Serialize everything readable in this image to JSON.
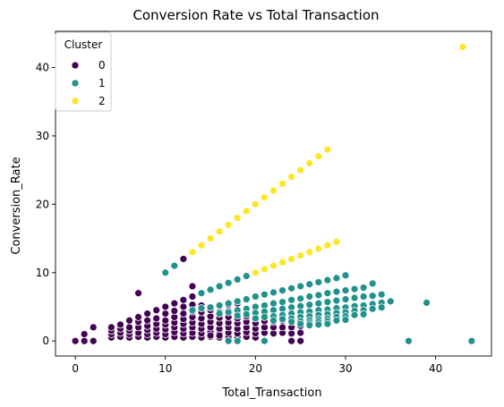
{
  "chart_data": {
    "type": "scatter",
    "title": "Conversion Rate vs Total Transaction",
    "xlabel": "Total_Transaction",
    "ylabel": "Conversion_Rate",
    "xlim": [
      -2.2,
      46.2
    ],
    "ylim": [
      -2.2,
      45.3
    ],
    "xticks": [
      0,
      10,
      20,
      30,
      40
    ],
    "yticks": [
      0,
      10,
      20,
      30,
      40
    ],
    "grid": false,
    "legend": {
      "title": "Cluster",
      "placement": "top-left"
    },
    "series": [
      {
        "name": "0",
        "color": "#440154",
        "points": [
          [
            0,
            0
          ],
          [
            1,
            0
          ],
          [
            2,
            0
          ],
          [
            1,
            1
          ],
          [
            2,
            2
          ],
          [
            7,
            7
          ],
          [
            12,
            12
          ],
          [
            13,
            8
          ],
          [
            4,
            0.5
          ],
          [
            4,
            1
          ],
          [
            4,
            1.5
          ],
          [
            4,
            2
          ],
          [
            5,
            0.6
          ],
          [
            5,
            1.2
          ],
          [
            5,
            1.8
          ],
          [
            5,
            2.4
          ],
          [
            6,
            0.5
          ],
          [
            6,
            1
          ],
          [
            6,
            1.5
          ],
          [
            6,
            2
          ],
          [
            6,
            3
          ],
          [
            7,
            0.6
          ],
          [
            7,
            1.2
          ],
          [
            7,
            2
          ],
          [
            7,
            2.8
          ],
          [
            7,
            3.5
          ],
          [
            8,
            0.5
          ],
          [
            8,
            1
          ],
          [
            8,
            1.6
          ],
          [
            8,
            2.2
          ],
          [
            8,
            3
          ],
          [
            8,
            4
          ],
          [
            9,
            0.6
          ],
          [
            9,
            1.2
          ],
          [
            9,
            1.8
          ],
          [
            9,
            2.5
          ],
          [
            9,
            3.3
          ],
          [
            9,
            4.5
          ],
          [
            10,
            0.5
          ],
          [
            10,
            1
          ],
          [
            10,
            1.7
          ],
          [
            10,
            2.4
          ],
          [
            10,
            3
          ],
          [
            10,
            4
          ],
          [
            10,
            5
          ],
          [
            11,
            0.6
          ],
          [
            11,
            1.3
          ],
          [
            11,
            2
          ],
          [
            11,
            2.7
          ],
          [
            11,
            3.5
          ],
          [
            11,
            4.4
          ],
          [
            11,
            5.5
          ],
          [
            12,
            0.5
          ],
          [
            12,
            1.1
          ],
          [
            12,
            1.8
          ],
          [
            12,
            2.5
          ],
          [
            12,
            3.2
          ],
          [
            12,
            4
          ],
          [
            12,
            5
          ],
          [
            12,
            6
          ],
          [
            13,
            0.6
          ],
          [
            13,
            1.2
          ],
          [
            13,
            2
          ],
          [
            13,
            2.7
          ],
          [
            13,
            3.5
          ],
          [
            13,
            4.3
          ],
          [
            13,
            5.3
          ],
          [
            13,
            6.5
          ],
          [
            14,
            0.5
          ],
          [
            14,
            1.1
          ],
          [
            14,
            1.8
          ],
          [
            14,
            2.5
          ],
          [
            14,
            3.3
          ],
          [
            14,
            4.2
          ],
          [
            14,
            5.2
          ],
          [
            15,
            0.6
          ],
          [
            15,
            1.3
          ],
          [
            15,
            2
          ],
          [
            15,
            2.8
          ],
          [
            15,
            3.6
          ],
          [
            15,
            4.5
          ],
          [
            15,
            5
          ],
          [
            16,
            0.5
          ],
          [
            16,
            1.1
          ],
          [
            16,
            1.8
          ],
          [
            16,
            2.6
          ],
          [
            16,
            3.4
          ],
          [
            16,
            4.2
          ],
          [
            16,
            5.2
          ],
          [
            17,
            0.6
          ],
          [
            17,
            1.2
          ],
          [
            17,
            2
          ],
          [
            17,
            2.7
          ],
          [
            17,
            3.5
          ],
          [
            17,
            4.4
          ],
          [
            17,
            5.3
          ],
          [
            18,
            0.5
          ],
          [
            18,
            1.1
          ],
          [
            18,
            1.8
          ],
          [
            18,
            2.6
          ],
          [
            18,
            3.3
          ],
          [
            18,
            4.2
          ],
          [
            18,
            5.5
          ],
          [
            19,
            0.6
          ],
          [
            19,
            1.3
          ],
          [
            19,
            2
          ],
          [
            19,
            2.8
          ],
          [
            19,
            3.6
          ],
          [
            19,
            4.6
          ],
          [
            20,
            0.5
          ],
          [
            20,
            1.1
          ],
          [
            20,
            1.8
          ],
          [
            20,
            2.6
          ],
          [
            20,
            3.4
          ],
          [
            20,
            4.3
          ],
          [
            20,
            5
          ],
          [
            21,
            1.2
          ],
          [
            21,
            2
          ],
          [
            21,
            2.9
          ],
          [
            21,
            3.8
          ],
          [
            22,
            1.1
          ],
          [
            22,
            2
          ],
          [
            22,
            2.8
          ],
          [
            22,
            3.7
          ],
          [
            23,
            1.2
          ],
          [
            23,
            2
          ],
          [
            23,
            3
          ],
          [
            24,
            1.1
          ],
          [
            24,
            2
          ],
          [
            24,
            3
          ],
          [
            25,
            1.2
          ],
          [
            25,
            2.2
          ],
          [
            25,
            3
          ],
          [
            26,
            2.3
          ],
          [
            26,
            3.5
          ],
          [
            27,
            2.5
          ],
          [
            27,
            3.7
          ],
          [
            28,
            3.6
          ],
          [
            15,
            0.8
          ],
          [
            16,
            0.8
          ],
          [
            24,
            0
          ],
          [
            25,
            0
          ]
        ]
      },
      {
        "name": "1",
        "color": "#21918c",
        "points": [
          [
            10,
            10
          ],
          [
            11,
            11
          ],
          [
            13,
            4.5
          ],
          [
            14,
            4.8
          ],
          [
            15,
            4.9
          ],
          [
            16,
            5.2
          ],
          [
            17,
            5.5
          ],
          [
            18,
            5.8
          ],
          [
            19,
            6.1
          ],
          [
            20,
            6.5
          ],
          [
            21,
            6.8
          ],
          [
            22,
            7.1
          ],
          [
            23,
            7.4
          ],
          [
            24,
            7.7
          ],
          [
            25,
            8
          ],
          [
            26,
            8.3
          ],
          [
            27,
            8.6
          ],
          [
            28,
            8.9
          ],
          [
            29,
            9.2
          ],
          [
            30,
            9.6
          ],
          [
            33,
            8.4
          ],
          [
            14,
            7
          ],
          [
            15,
            7.5
          ],
          [
            16,
            8
          ],
          [
            17,
            8.5
          ],
          [
            18,
            9
          ],
          [
            19,
            9.5
          ],
          [
            20,
            10
          ],
          [
            21,
            10.5
          ],
          [
            22,
            11
          ],
          [
            23,
            11.5
          ],
          [
            16,
            4
          ],
          [
            17,
            4.2
          ],
          [
            18,
            4.5
          ],
          [
            19,
            4.7
          ],
          [
            20,
            5
          ],
          [
            21,
            5.2
          ],
          [
            22,
            5.5
          ],
          [
            23,
            5.7
          ],
          [
            24,
            6
          ],
          [
            25,
            6.2
          ],
          [
            26,
            6.5
          ],
          [
            27,
            6.7
          ],
          [
            28,
            7
          ],
          [
            29,
            7.2
          ],
          [
            30,
            7.4
          ],
          [
            31,
            7.6
          ],
          [
            32,
            7.8
          ],
          [
            18,
            3.7
          ],
          [
            19,
            3.9
          ],
          [
            20,
            4.1
          ],
          [
            21,
            4.3
          ],
          [
            22,
            4.5
          ],
          [
            23,
            4.7
          ],
          [
            24,
            4.9
          ],
          [
            25,
            5.1
          ],
          [
            26,
            5.3
          ],
          [
            27,
            5.5
          ],
          [
            28,
            5.7
          ],
          [
            29,
            5.9
          ],
          [
            30,
            6.1
          ],
          [
            31,
            6.3
          ],
          [
            32,
            6.5
          ],
          [
            33,
            6.6
          ],
          [
            34,
            6.8
          ],
          [
            20,
            3.3
          ],
          [
            21,
            3.5
          ],
          [
            22,
            3.6
          ],
          [
            23,
            3.8
          ],
          [
            24,
            4
          ],
          [
            25,
            4.2
          ],
          [
            26,
            4.3
          ],
          [
            27,
            4.5
          ],
          [
            28,
            4.6
          ],
          [
            29,
            4.8
          ],
          [
            30,
            4.9
          ],
          [
            31,
            5.1
          ],
          [
            32,
            5.2
          ],
          [
            33,
            5.4
          ],
          [
            34,
            5.6
          ],
          [
            35,
            5.8
          ],
          [
            22,
            3
          ],
          [
            23,
            3.2
          ],
          [
            24,
            3.3
          ],
          [
            25,
            3.5
          ],
          [
            26,
            3.6
          ],
          [
            27,
            3.8
          ],
          [
            28,
            3.9
          ],
          [
            29,
            4.1
          ],
          [
            30,
            4.2
          ],
          [
            31,
            4.4
          ],
          [
            32,
            4.5
          ],
          [
            33,
            4.7
          ],
          [
            34,
            4.9
          ],
          [
            24,
            2.8
          ],
          [
            25,
            2.9
          ],
          [
            26,
            3
          ],
          [
            27,
            3.2
          ],
          [
            28,
            3.3
          ],
          [
            29,
            3.5
          ],
          [
            30,
            3.6
          ],
          [
            31,
            3.8
          ],
          [
            32,
            3.9
          ],
          [
            25,
            2.5
          ],
          [
            26,
            2.6
          ],
          [
            27,
            2.8
          ],
          [
            28,
            2.9
          ],
          [
            29,
            3
          ],
          [
            30,
            3.1
          ],
          [
            26,
            2.3
          ],
          [
            27,
            2.4
          ],
          [
            28,
            2.5
          ],
          [
            17,
            0
          ],
          [
            18,
            0
          ],
          [
            21,
            0
          ],
          [
            37,
            0
          ],
          [
            39,
            5.6
          ],
          [
            44,
            0
          ]
        ]
      },
      {
        "name": "2",
        "color": "#fde725",
        "points": [
          [
            13,
            13
          ],
          [
            14,
            14
          ],
          [
            15,
            15
          ],
          [
            16,
            16
          ],
          [
            17,
            17
          ],
          [
            18,
            18
          ],
          [
            19,
            19
          ],
          [
            20,
            20
          ],
          [
            21,
            21
          ],
          [
            22,
            22
          ],
          [
            23,
            23
          ],
          [
            24,
            24
          ],
          [
            25,
            25
          ],
          [
            26,
            26
          ],
          [
            27,
            27
          ],
          [
            28,
            28
          ],
          [
            20,
            10
          ],
          [
            21,
            10.5
          ],
          [
            22,
            11
          ],
          [
            23,
            11.5
          ],
          [
            24,
            12
          ],
          [
            25,
            12.5
          ],
          [
            26,
            13
          ],
          [
            27,
            13.5
          ],
          [
            28,
            14
          ],
          [
            29,
            14.5
          ],
          [
            43,
            43
          ]
        ]
      }
    ]
  }
}
